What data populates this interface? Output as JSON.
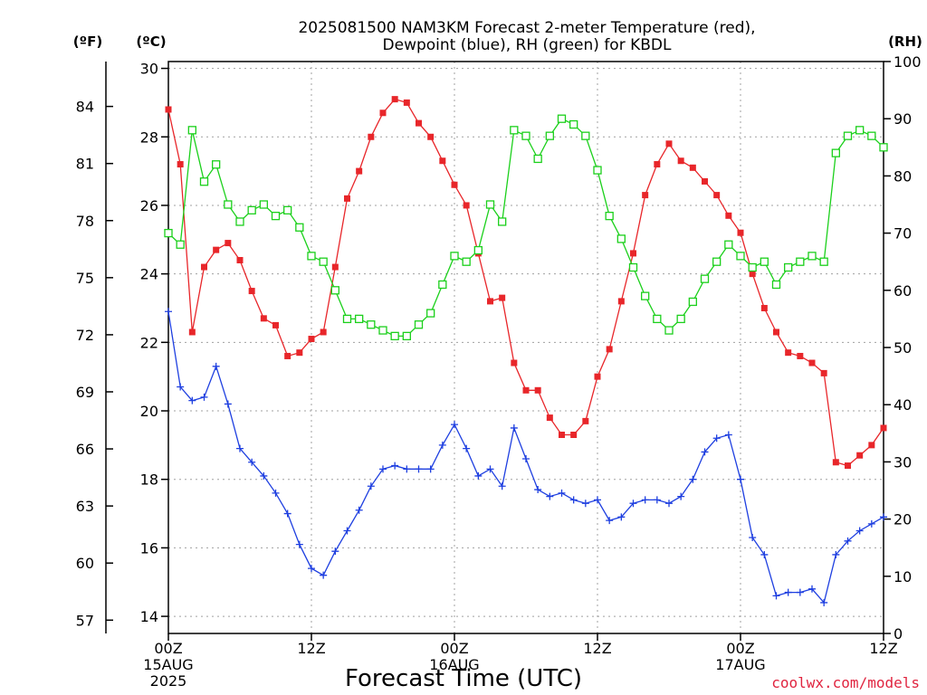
{
  "chart_data": {
    "type": "line",
    "title_line1": "2025081500 NAM3KM Forecast 2-meter Temperature (red),",
    "title_line2": "Dewpoint (blue), RH (green) for KBDL",
    "xlabel": "Forecast Time (UTC)",
    "credit": "coolwx.com/models",
    "unit_f": "(ºF)",
    "unit_c": "(ºC)",
    "unit_rh": "(RH)",
    "x_range_hours": [
      0,
      60
    ],
    "y_left_c_range": [
      13.5,
      30.2
    ],
    "y_right_rh_range": [
      0,
      100
    ],
    "grid": true,
    "x_ticks": [
      {
        "hour": 0,
        "line1": "00Z",
        "line2": "15AUG",
        "line3": "2025"
      },
      {
        "hour": 12,
        "line1": "12Z",
        "line2": "",
        "line3": ""
      },
      {
        "hour": 24,
        "line1": "00Z",
        "line2": "16AUG",
        "line3": ""
      },
      {
        "hour": 36,
        "line1": "12Z",
        "line2": "",
        "line3": ""
      },
      {
        "hour": 48,
        "line1": "00Z",
        "line2": "17AUG",
        "line3": ""
      },
      {
        "hour": 60,
        "line1": "12Z",
        "line2": "",
        "line3": ""
      }
    ],
    "y_ticks_c": [
      "14",
      "16",
      "18",
      "20",
      "22",
      "24",
      "26",
      "28",
      "30"
    ],
    "y_ticks_f": [
      "57",
      "60",
      "63",
      "66",
      "69",
      "72",
      "75",
      "78",
      "81",
      "84"
    ],
    "y_ticks_rh": [
      "0",
      "10",
      "20",
      "30",
      "40",
      "50",
      "60",
      "70",
      "80",
      "90",
      "100"
    ],
    "hours": [
      0,
      1,
      2,
      3,
      4,
      5,
      6,
      7,
      8,
      9,
      10,
      11,
      12,
      13,
      14,
      15,
      16,
      17,
      18,
      19,
      20,
      21,
      22,
      23,
      24,
      25,
      26,
      27,
      28,
      29,
      30,
      31,
      32,
      33,
      34,
      35,
      36,
      37,
      38,
      39,
      40,
      41,
      42,
      43,
      44,
      45,
      46,
      47,
      48,
      49,
      50,
      51,
      52,
      53,
      54,
      55,
      56,
      57,
      58,
      59,
      60
    ],
    "series": [
      {
        "name": "Temperature (°C)",
        "color": "#e8262a",
        "marker": "filled-square",
        "values": [
          28.8,
          27.2,
          22.3,
          24.2,
          24.7,
          24.9,
          24.4,
          23.5,
          22.7,
          22.5,
          21.6,
          21.7,
          22.1,
          22.3,
          24.2,
          26.2,
          27.0,
          28.0,
          28.7,
          29.1,
          29.0,
          28.4,
          28.0,
          27.3,
          26.6,
          26.0,
          24.6,
          23.2,
          23.3,
          21.4,
          20.6,
          20.6,
          19.8,
          19.3,
          19.3,
          19.7,
          21.0,
          21.8,
          23.2,
          24.6,
          26.3,
          27.2,
          27.8,
          27.3,
          27.1,
          26.7,
          26.3,
          25.7,
          25.2,
          24.0,
          23.0,
          22.3,
          21.7,
          21.6,
          21.4,
          21.1,
          18.5,
          18.4,
          18.7,
          19.0,
          19.5
        ]
      },
      {
        "name": "Dewpoint (°C)",
        "color": "#1e3fe0",
        "marker": "plus",
        "values": [
          22.9,
          20.7,
          20.3,
          20.4,
          21.3,
          20.2,
          18.9,
          18.5,
          18.1,
          17.6,
          17.0,
          16.1,
          15.4,
          15.2,
          15.9,
          16.5,
          17.1,
          17.8,
          18.3,
          18.4,
          18.3,
          18.3,
          18.3,
          19.0,
          19.6,
          18.9,
          18.1,
          18.3,
          17.8,
          19.5,
          18.6,
          17.7,
          17.5,
          17.6,
          17.4,
          17.3,
          17.4,
          16.8,
          16.9,
          17.3,
          17.4,
          17.4,
          17.3,
          17.5,
          18.0,
          18.8,
          19.2,
          19.3,
          18.0,
          16.3,
          15.8,
          14.6,
          14.7,
          14.7,
          14.8,
          14.4,
          15.8,
          16.2,
          16.5,
          16.7,
          16.9
        ]
      },
      {
        "name": "RH (%)",
        "color": "#1bd01b",
        "marker": "open-square",
        "values": [
          70,
          68,
          88,
          79,
          82,
          75,
          72,
          74,
          75,
          73,
          74,
          71,
          66,
          65,
          60,
          55,
          55,
          54,
          53,
          52,
          52,
          54,
          56,
          61,
          66,
          65,
          67,
          75,
          72,
          88,
          87,
          83,
          87,
          90,
          89,
          87,
          81,
          73,
          69,
          64,
          59,
          55,
          53,
          55,
          58,
          62,
          65,
          68,
          66,
          64,
          65,
          61,
          64,
          65,
          66,
          65,
          84,
          87,
          88,
          87,
          85
        ]
      }
    ]
  }
}
